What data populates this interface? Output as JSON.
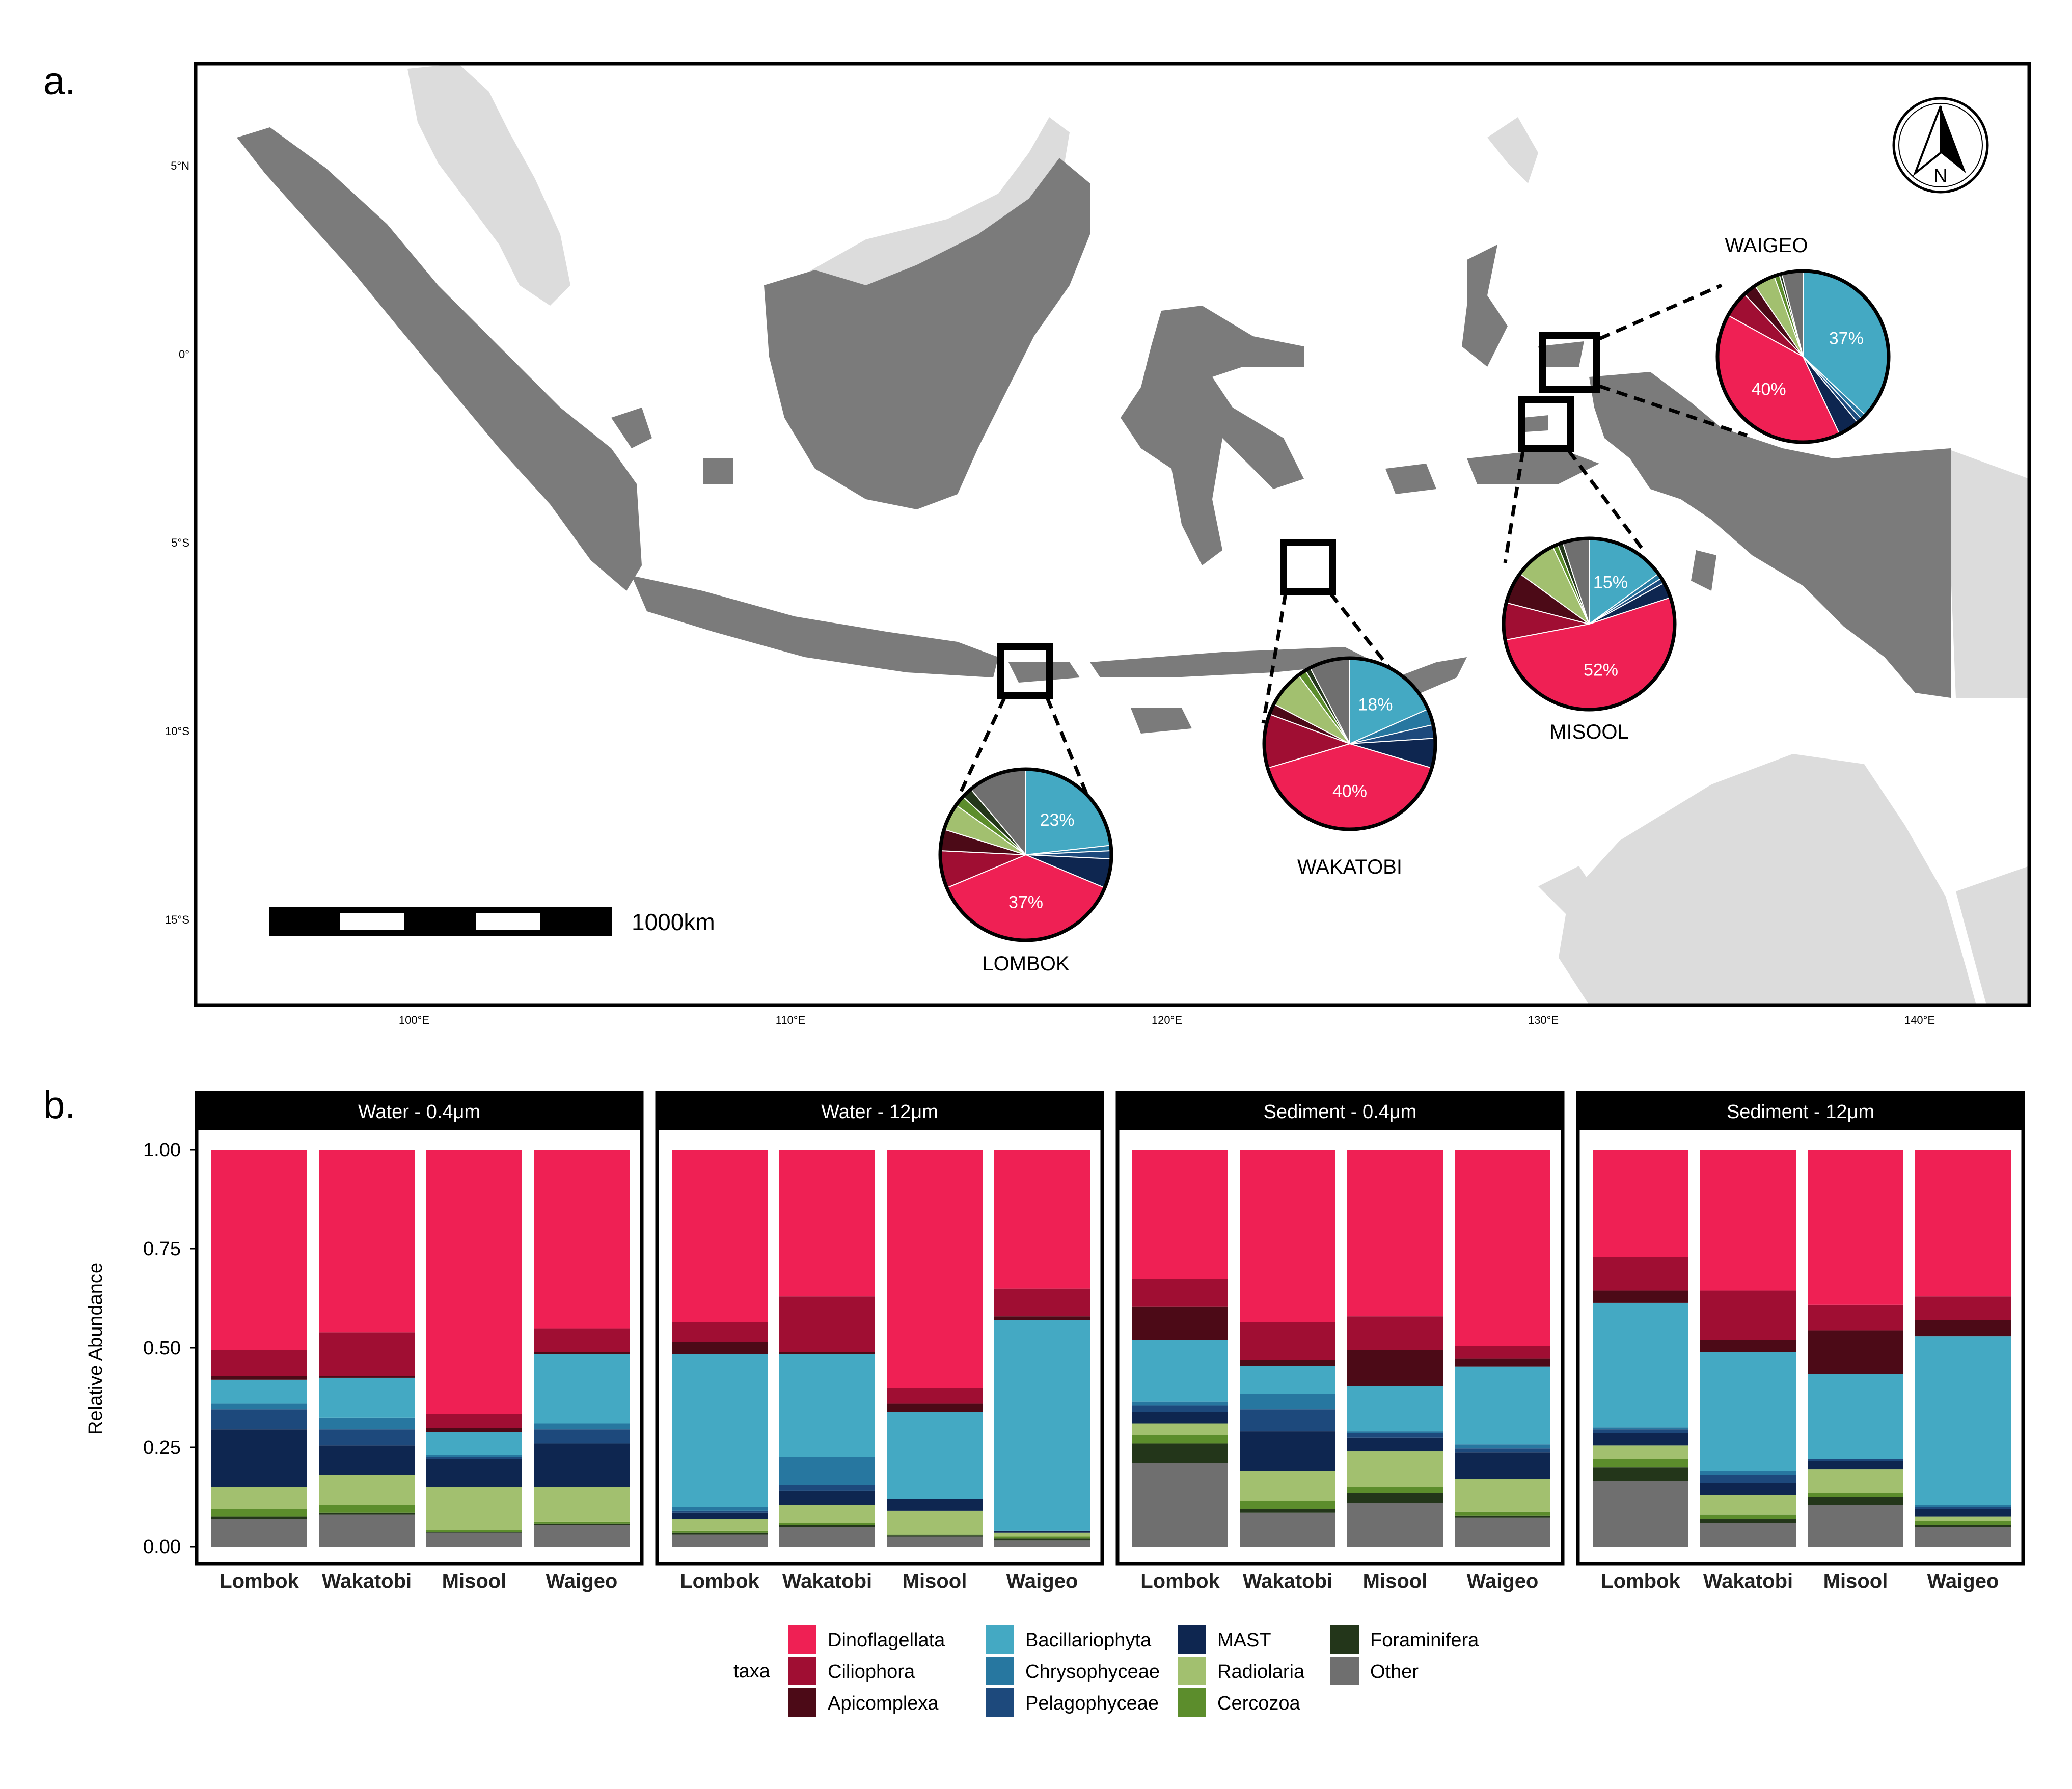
{
  "panel_a": {
    "label": "a.",
    "lat_ticks": [
      "5°N",
      "0°",
      "5°S",
      "10°S",
      "15°S"
    ],
    "lon_ticks": [
      "100°E",
      "110°E",
      "120°E",
      "130°E",
      "140°E"
    ],
    "scale_label": "1000km",
    "north_label": "N"
  },
  "panel_b": {
    "label": "b.",
    "ylabel": "Relative Abundance",
    "yticks": [
      "0.00",
      "0.25",
      "0.50",
      "0.75",
      "1.00"
    ],
    "legend_title": "taxa"
  },
  "colors": {
    "Dinoflagellata": "#EF2054",
    "Ciliophora": "#A00E33",
    "Apicomplexa": "#4C0A17",
    "Bacillariophyta": "#44A9C3",
    "Chrysophyceae": "#2777A0",
    "Pelagophyceae": "#1D497C",
    "MAST": "#0E2650",
    "Radiolaria": "#A2C06F",
    "Cercozoa": "#5C8D2C",
    "Foraminifera": "#23361A",
    "Other": "#6F6F6F",
    "land": "#7B7B7B",
    "land_other": "#DCDCDC"
  },
  "chart_data": [
    {
      "type": "pie",
      "panel": "a",
      "labels_order": [
        "Bacillariophyta",
        "Chrysophyceae",
        "Pelagophyceae",
        "MAST",
        "Dinoflagellata",
        "Ciliophora",
        "Apicomplexa",
        "Radiolaria",
        "Cercozoa",
        "Foraminifera",
        "Other"
      ],
      "pies": [
        {
          "site": "LOMBOK",
          "values": [
            0.23,
            0.01,
            0.015,
            0.055,
            0.37,
            0.07,
            0.04,
            0.05,
            0.02,
            0.02,
            0.11
          ],
          "labels": [
            "23%",
            "",
            "",
            "",
            "37%",
            "",
            "",
            "",
            "",
            "",
            ""
          ]
        },
        {
          "site": "WAKATOBI",
          "values": [
            0.18,
            0.03,
            0.025,
            0.055,
            0.4,
            0.1,
            0.02,
            0.07,
            0.015,
            0.01,
            0.075
          ],
          "labels": [
            "18%",
            "",
            "",
            "",
            "40%",
            "",
            "",
            "",
            "",
            "",
            ""
          ]
        },
        {
          "site": "MISOOL",
          "values": [
            0.15,
            0.01,
            0.01,
            0.03,
            0.52,
            0.07,
            0.06,
            0.08,
            0.01,
            0.01,
            0.05
          ],
          "labels": [
            "15%",
            "",
            "",
            "",
            "52%",
            "",
            "",
            "",
            "",
            "",
            ""
          ]
        },
        {
          "site": "WAIGEO",
          "values": [
            0.37,
            0.01,
            0.01,
            0.04,
            0.4,
            0.05,
            0.025,
            0.04,
            0.01,
            0.005,
            0.04
          ],
          "labels": [
            "37%",
            "",
            "",
            "",
            "40%",
            "",
            "",
            "",
            "",
            "",
            ""
          ]
        }
      ]
    },
    {
      "type": "bar",
      "panel": "b",
      "stacked": true,
      "categories": [
        "Lombok",
        "Wakatobi",
        "Misool",
        "Waigeo"
      ],
      "facets": [
        "Water - 0.4μm",
        "Water - 12μm",
        "Sediment - 0.4μm",
        "Sediment - 12μm"
      ],
      "ylabel": "Relative Abundance",
      "ylim": [
        0,
        1
      ],
      "stack_order_bottom_to_top": [
        "Other",
        "Foraminifera",
        "Cercozoa",
        "Radiolaria",
        "MAST",
        "Pelagophyceae",
        "Chrysophyceae",
        "Bacillariophyta",
        "Apicomplexa",
        "Ciliophora",
        "Dinoflagellata"
      ],
      "values": [
        [
          [
            0.07,
            0.005,
            0.02,
            0.055,
            0.145,
            0.05,
            0.015,
            0.06,
            0.01,
            0.065,
            0.505
          ],
          [
            0.08,
            0.005,
            0.02,
            0.075,
            0.075,
            0.04,
            0.03,
            0.1,
            0.005,
            0.11,
            0.46
          ],
          [
            0.035,
            0.002,
            0.005,
            0.108,
            0.07,
            0.005,
            0.005,
            0.058,
            0.01,
            0.037,
            0.665
          ],
          [
            0.055,
            0.003,
            0.005,
            0.087,
            0.11,
            0.035,
            0.015,
            0.175,
            0.005,
            0.06,
            0.45
          ]
        ],
        [
          [
            0.03,
            0.005,
            0.005,
            0.03,
            0.015,
            0.005,
            0.01,
            0.385,
            0.03,
            0.05,
            0.435
          ],
          [
            0.05,
            0.005,
            0.005,
            0.045,
            0.035,
            0.015,
            0.07,
            0.26,
            0.005,
            0.14,
            0.37
          ],
          [
            0.025,
            0.003,
            0.002,
            0.06,
            0.03,
            0.0,
            0.0,
            0.22,
            0.02,
            0.04,
            0.6
          ],
          [
            0.015,
            0.005,
            0.005,
            0.01,
            0.005,
            0.0,
            0.0,
            0.53,
            0.01,
            0.07,
            0.35
          ]
        ],
        [
          [
            0.21,
            0.05,
            0.02,
            0.03,
            0.03,
            0.015,
            0.01,
            0.155,
            0.085,
            0.07,
            0.325
          ],
          [
            0.085,
            0.01,
            0.02,
            0.075,
            0.1,
            0.055,
            0.04,
            0.07,
            0.015,
            0.095,
            0.435
          ],
          [
            0.11,
            0.025,
            0.015,
            0.09,
            0.035,
            0.01,
            0.005,
            0.115,
            0.09,
            0.085,
            0.42
          ],
          [
            0.07,
            0.005,
            0.01,
            0.08,
            0.065,
            0.01,
            0.01,
            0.19,
            0.02,
            0.03,
            0.48
          ]
        ],
        [
          [
            0.165,
            0.035,
            0.02,
            0.035,
            0.03,
            0.01,
            0.005,
            0.315,
            0.03,
            0.085,
            0.27
          ],
          [
            0.06,
            0.01,
            0.01,
            0.05,
            0.03,
            0.02,
            0.01,
            0.3,
            0.03,
            0.125,
            0.355
          ],
          [
            0.105,
            0.02,
            0.01,
            0.06,
            0.02,
            0.005,
            0.0,
            0.215,
            0.11,
            0.065,
            0.39
          ],
          [
            0.05,
            0.005,
            0.01,
            0.01,
            0.02,
            0.005,
            0.005,
            0.425,
            0.04,
            0.06,
            0.37
          ]
        ]
      ]
    }
  ]
}
